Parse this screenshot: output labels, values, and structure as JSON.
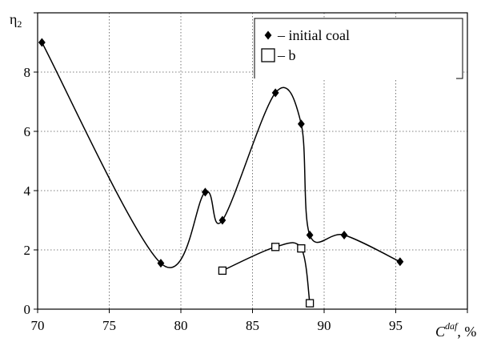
{
  "chart_data": {
    "type": "line",
    "ylabel_symbol": "η",
    "ylabel_subscript": "2",
    "xlabel_base": "C",
    "xlabel_superscript": "daf",
    "xlabel_unit": ", %",
    "xlim": [
      70,
      100
    ],
    "ylim": [
      0,
      10
    ],
    "x_ticks": [
      70,
      75,
      80,
      85,
      90,
      95
    ],
    "y_ticks": [
      0,
      2,
      4,
      6,
      8
    ],
    "grid": true,
    "legend_position": "top-right",
    "series": [
      {
        "name": "– initial coal",
        "marker": "filled-diamond",
        "x": [
          70.3,
          78.6,
          81.7,
          82.9,
          86.6,
          88.4,
          89.0,
          91.4,
          95.3
        ],
        "y": [
          9.0,
          1.55,
          3.95,
          3.0,
          7.3,
          6.25,
          2.5,
          2.5,
          1.6
        ]
      },
      {
        "name": "– b",
        "marker": "open-square",
        "x": [
          82.9,
          86.6,
          88.4,
          89.0
        ],
        "y": [
          1.3,
          2.1,
          2.05,
          0.2
        ]
      }
    ]
  }
}
